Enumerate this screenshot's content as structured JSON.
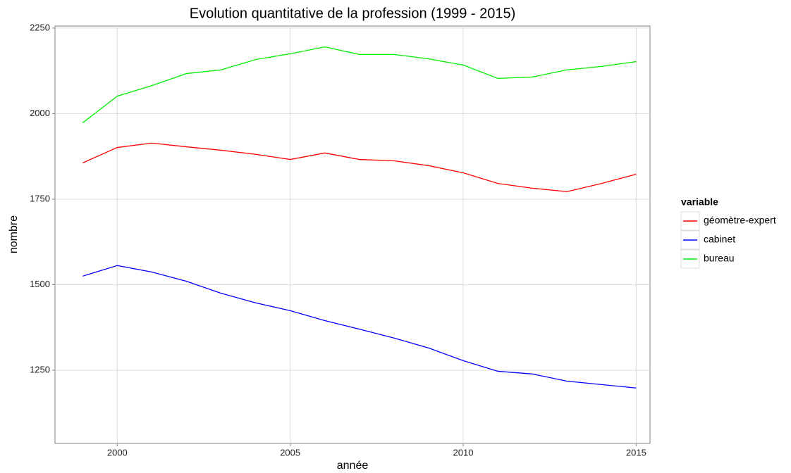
{
  "chart_data": {
    "type": "line",
    "title": "Evolution quantitative de la profession (1999 - 2015)",
    "x_label": "année",
    "y_label": "nombre",
    "legend_title": "variable",
    "x": [
      1999,
      2000,
      2001,
      2002,
      2003,
      2004,
      2005,
      2006,
      2007,
      2008,
      2009,
      2010,
      2011,
      2012,
      2013,
      2014,
      2015
    ],
    "series": [
      {
        "name": "géomètre-expert",
        "color": "#ff0000",
        "values": [
          1856,
          1901,
          1914,
          1903,
          1893,
          1881,
          1866,
          1885,
          1866,
          1862,
          1848,
          1827,
          1796,
          1782,
          1772,
          1796,
          1823
        ]
      },
      {
        "name": "cabinet",
        "color": "#0000ff",
        "values": [
          1525,
          1556,
          1537,
          1510,
          1475,
          1447,
          1424,
          1395,
          1370,
          1344,
          1315,
          1278,
          1247,
          1239,
          1218,
          1208,
          1198
        ]
      },
      {
        "name": "bureau",
        "color": "#00ee00",
        "values": [
          1973,
          2051,
          2082,
          2117,
          2128,
          2158,
          2175,
          2195,
          2173,
          2173,
          2160,
          2142,
          2103,
          2107,
          2128,
          2138,
          2152
        ]
      }
    ],
    "xlim": [
      1998.2,
      2015.4
    ],
    "xticks": [
      2000,
      2005,
      2010,
      2015
    ],
    "ylim": [
      1036,
      2256
    ],
    "yticks": [
      1250,
      1500,
      1750,
      2000,
      2250
    ],
    "grid": true,
    "legend": "right"
  }
}
